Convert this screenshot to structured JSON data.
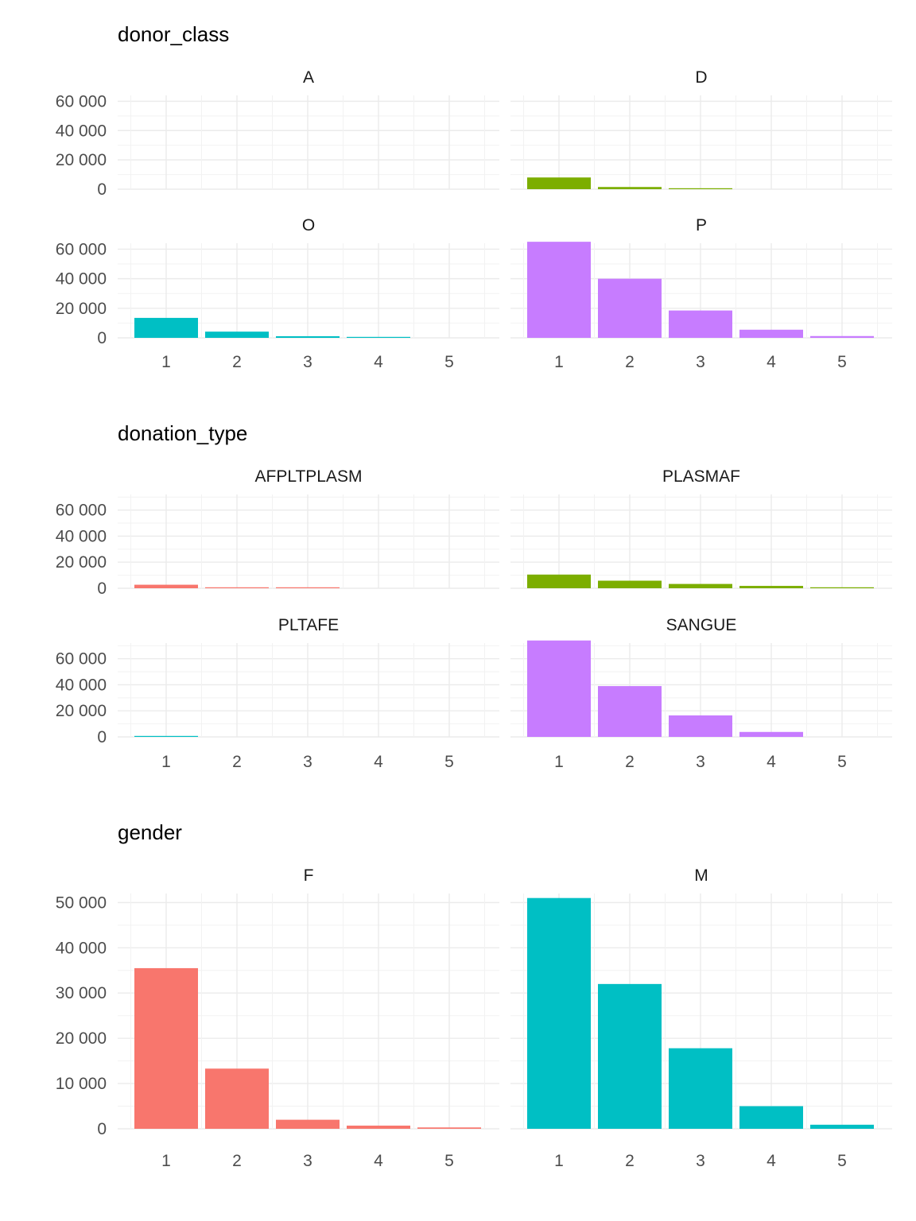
{
  "chart_data": [
    {
      "type": "bar",
      "title": "donor_class",
      "xlabel": "",
      "ylabel": "",
      "categories": [
        "1",
        "2",
        "3",
        "4",
        "5"
      ],
      "ylim": [
        0,
        64000
      ],
      "yticks": [
        0,
        20000,
        40000,
        60000
      ],
      "ytick_labels": [
        "0",
        "20 000",
        "40 000",
        "60 000"
      ],
      "facets": [
        {
          "name": "A",
          "color": "#F8766D",
          "values": [
            0,
            0,
            0,
            0,
            0
          ]
        },
        {
          "name": "D",
          "color": "#7CAE00",
          "values": [
            8000,
            1500,
            400,
            0,
            0
          ]
        },
        {
          "name": "O",
          "color": "#00BFC4",
          "values": [
            13500,
            4200,
            1100,
            400,
            0
          ]
        },
        {
          "name": "P",
          "color": "#C77CFF",
          "values": [
            65000,
            40000,
            18500,
            5500,
            1200
          ]
        }
      ]
    },
    {
      "type": "bar",
      "title": "donation_type",
      "xlabel": "",
      "ylabel": "",
      "categories": [
        "1",
        "2",
        "3",
        "4",
        "5"
      ],
      "ylim": [
        0,
        72000
      ],
      "yticks": [
        0,
        20000,
        40000,
        60000
      ],
      "ytick_labels": [
        "0",
        "20 000",
        "40 000",
        "60 000"
      ],
      "facets": [
        {
          "name": "AFPLTPLASM",
          "color": "#F8766D",
          "values": [
            2700,
            500,
            300,
            0,
            0
          ]
        },
        {
          "name": "PLASMAF",
          "color": "#7CAE00",
          "values": [
            10500,
            5800,
            3300,
            1800,
            600
          ]
        },
        {
          "name": "PLTAFE",
          "color": "#00BFC4",
          "values": [
            600,
            0,
            0,
            0,
            0
          ]
        },
        {
          "name": "SANGUE",
          "color": "#C77CFF",
          "values": [
            74000,
            39000,
            16500,
            3800,
            0
          ]
        }
      ]
    },
    {
      "type": "bar",
      "title": "gender",
      "xlabel": "",
      "ylabel": "",
      "categories": [
        "1",
        "2",
        "3",
        "4",
        "5"
      ],
      "ylim": [
        0,
        52000
      ],
      "yticks": [
        0,
        10000,
        20000,
        30000,
        40000,
        50000
      ],
      "ytick_labels": [
        "0",
        "10 000",
        "20 000",
        "30 000",
        "40 000",
        "50 000"
      ],
      "facets": [
        {
          "name": "F",
          "color": "#F8766D",
          "values": [
            35500,
            13300,
            2000,
            700,
            300
          ]
        },
        {
          "name": "M",
          "color": "#00BFC4",
          "values": [
            51000,
            32000,
            17800,
            5000,
            900
          ]
        }
      ]
    }
  ]
}
